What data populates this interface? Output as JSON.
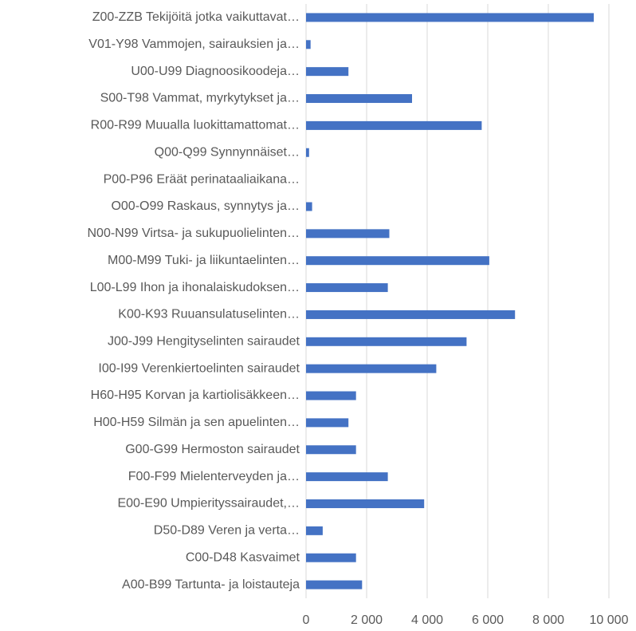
{
  "chart_data": {
    "type": "bar",
    "orientation": "horizontal",
    "categories": [
      "Z00-ZZB Tekijöitä jotka vaikuttavat…",
      "V01-Y98 Vammojen, sairauksien ja…",
      "U00-U99 Diagnoosikoodeja…",
      "S00-T98 Vammat, myrkytykset ja…",
      "R00-R99 Muualla luokittamattomat…",
      "Q00-Q99 Synnynnäiset…",
      "P00-P96 Eräät perinataaliaikana…",
      "O00-O99 Raskaus, synnytys ja…",
      "N00-N99 Virtsa- ja sukupuolielinten…",
      "M00-M99 Tuki- ja liikuntaelinten…",
      "L00-L99 Ihon ja ihonalaiskudoksen…",
      "K00-K93 Ruuansulatuselinten…",
      "J00-J99 Hengityselinten sairaudet",
      "I00-I99 Verenkiertoelinten sairaudet",
      "H60-H95 Korvan ja kartiolisäkkeen…",
      "H00-H59 Silmän ja sen apuelinten…",
      "G00-G99 Hermoston sairaudet",
      "F00-F99 Mielenterveyden ja…",
      "E00-E90 Umpierityssairaudet,…",
      "D50-D89 Veren ja verta…",
      "C00-D48 Kasvaimet",
      "A00-B99 Tartunta- ja loistauteja"
    ],
    "values": [
      9500,
      150,
      1400,
      3500,
      5800,
      100,
      0,
      200,
      2750,
      6050,
      2700,
      6900,
      5300,
      4300,
      1650,
      1400,
      1650,
      2700,
      3900,
      550,
      1650,
      1850
    ],
    "color": "#4472c4",
    "xlim": [
      0,
      10000
    ],
    "xticks": [
      0,
      {
        "value": 2000,
        "label": "2 000"
      },
      {
        "value": 4000,
        "label": "4 000"
      },
      {
        "value": 6000,
        "label": "6 000"
      },
      {
        "value": 8000,
        "label": "8 000"
      },
      {
        "value": 10000,
        "label": "10 000"
      }
    ],
    "grid": true
  }
}
